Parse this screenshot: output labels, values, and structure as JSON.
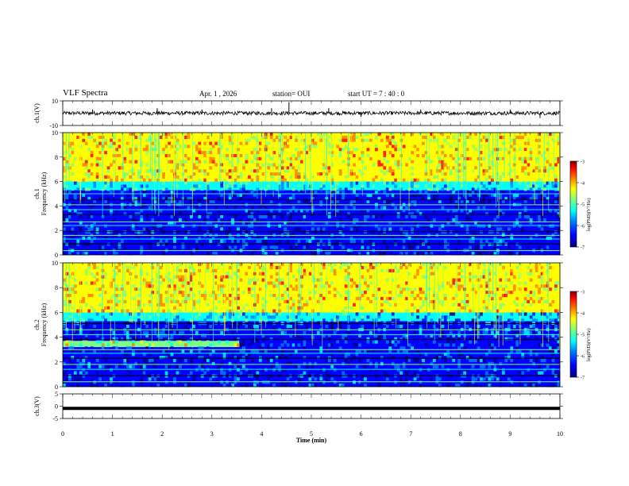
{
  "header": {
    "title": "VLF Spectra",
    "date": "Apr. 1 , 2026",
    "station": "station= OUI",
    "start": "start UT = 7 : 40 : 0"
  },
  "colors": {
    "colormap": [
      "#00007f",
      "#0000ff",
      "#007fff",
      "#00ffff",
      "#7fff7f",
      "#ffff00",
      "#ff7f00",
      "#ff0000",
      "#7f0000"
    ],
    "waveform": "#000000",
    "frame": "#000000"
  },
  "chart_data": [
    {
      "type": "line",
      "name": "ch1-waveform",
      "ylabel": "ch.1(V)",
      "yticks": [
        "10",
        "-10"
      ],
      "ylim": [
        -10,
        10
      ],
      "xlim": [
        0,
        10
      ],
      "description_values": {
        "baseline": 0,
        "noise_amplitude": 1.5
      },
      "spikes_min": [
        0.6,
        1.9,
        2.8,
        4.2,
        4.55,
        5.35,
        6.0,
        7.2,
        9.0,
        9.6
      ],
      "spike_values": [
        3,
        4,
        3,
        4,
        9,
        4,
        -3,
        3,
        3,
        -4
      ]
    },
    {
      "type": "heatmap",
      "name": "ch1-spectrogram",
      "ylabel": "ch.1\nFrequency (kHz)",
      "yticks": [
        "0",
        "2",
        "4",
        "6",
        "8",
        "10"
      ],
      "ylim": [
        0,
        10
      ],
      "xlim": [
        0,
        10
      ],
      "colorbar": {
        "label": "log(PSD)(V²/Hz)",
        "ticks": [
          "-3",
          "-4",
          "-5",
          "-6",
          "-7"
        ],
        "range": [
          -7,
          -3
        ]
      },
      "bands_khz": [
        {
          "from": 6.0,
          "to": 10.0,
          "value": -4.4
        },
        {
          "from": 5.3,
          "to": 6.0,
          "value": -5.6
        },
        {
          "from": 0.0,
          "to": 5.3,
          "value": -6.5
        }
      ],
      "lines_khz": [
        0.35,
        0.9,
        1.3,
        1.6,
        1.9,
        2.4,
        2.7,
        3.3,
        3.7,
        4.1,
        4.5,
        5.0
      ]
    },
    {
      "type": "heatmap",
      "name": "ch2-spectrogram",
      "ylabel": "ch.2\nFrequency (kHz)",
      "yticks": [
        "0",
        "2",
        "4",
        "6",
        "8",
        "10"
      ],
      "ylim": [
        0,
        10
      ],
      "xlim": [
        0,
        10
      ],
      "colorbar": {
        "label": "log(PSD)(V²/Hz)",
        "ticks": [
          "-3",
          "-4",
          "-5",
          "-6",
          "-7"
        ],
        "range": [
          -7,
          -3
        ]
      },
      "bands_khz": [
        {
          "from": 6.0,
          "to": 10.0,
          "value": -4.4
        },
        {
          "from": 5.3,
          "to": 6.0,
          "value": -5.5
        },
        {
          "from": 3.2,
          "to": 3.7,
          "value": -4.8,
          "x_to_min": 3.55
        },
        {
          "from": 0.0,
          "to": 5.3,
          "value": -6.5
        }
      ],
      "lines_khz": [
        0.4,
        0.9,
        1.4,
        1.8,
        2.3,
        2.7,
        3.0,
        3.8,
        4.2,
        4.6,
        5.1
      ]
    },
    {
      "type": "line",
      "name": "ch3-waveform",
      "ylabel": "ch.3(V)",
      "yticks": [
        "5",
        "0",
        "-5"
      ],
      "ylim": [
        -5,
        5
      ],
      "xlim": [
        0,
        10
      ],
      "constant_value": -0.9
    }
  ],
  "x_axis": {
    "label": "Time (min)",
    "ticks": [
      "0",
      "1",
      "2",
      "3",
      "4",
      "5",
      "6",
      "7",
      "8",
      "9",
      "10"
    ]
  }
}
